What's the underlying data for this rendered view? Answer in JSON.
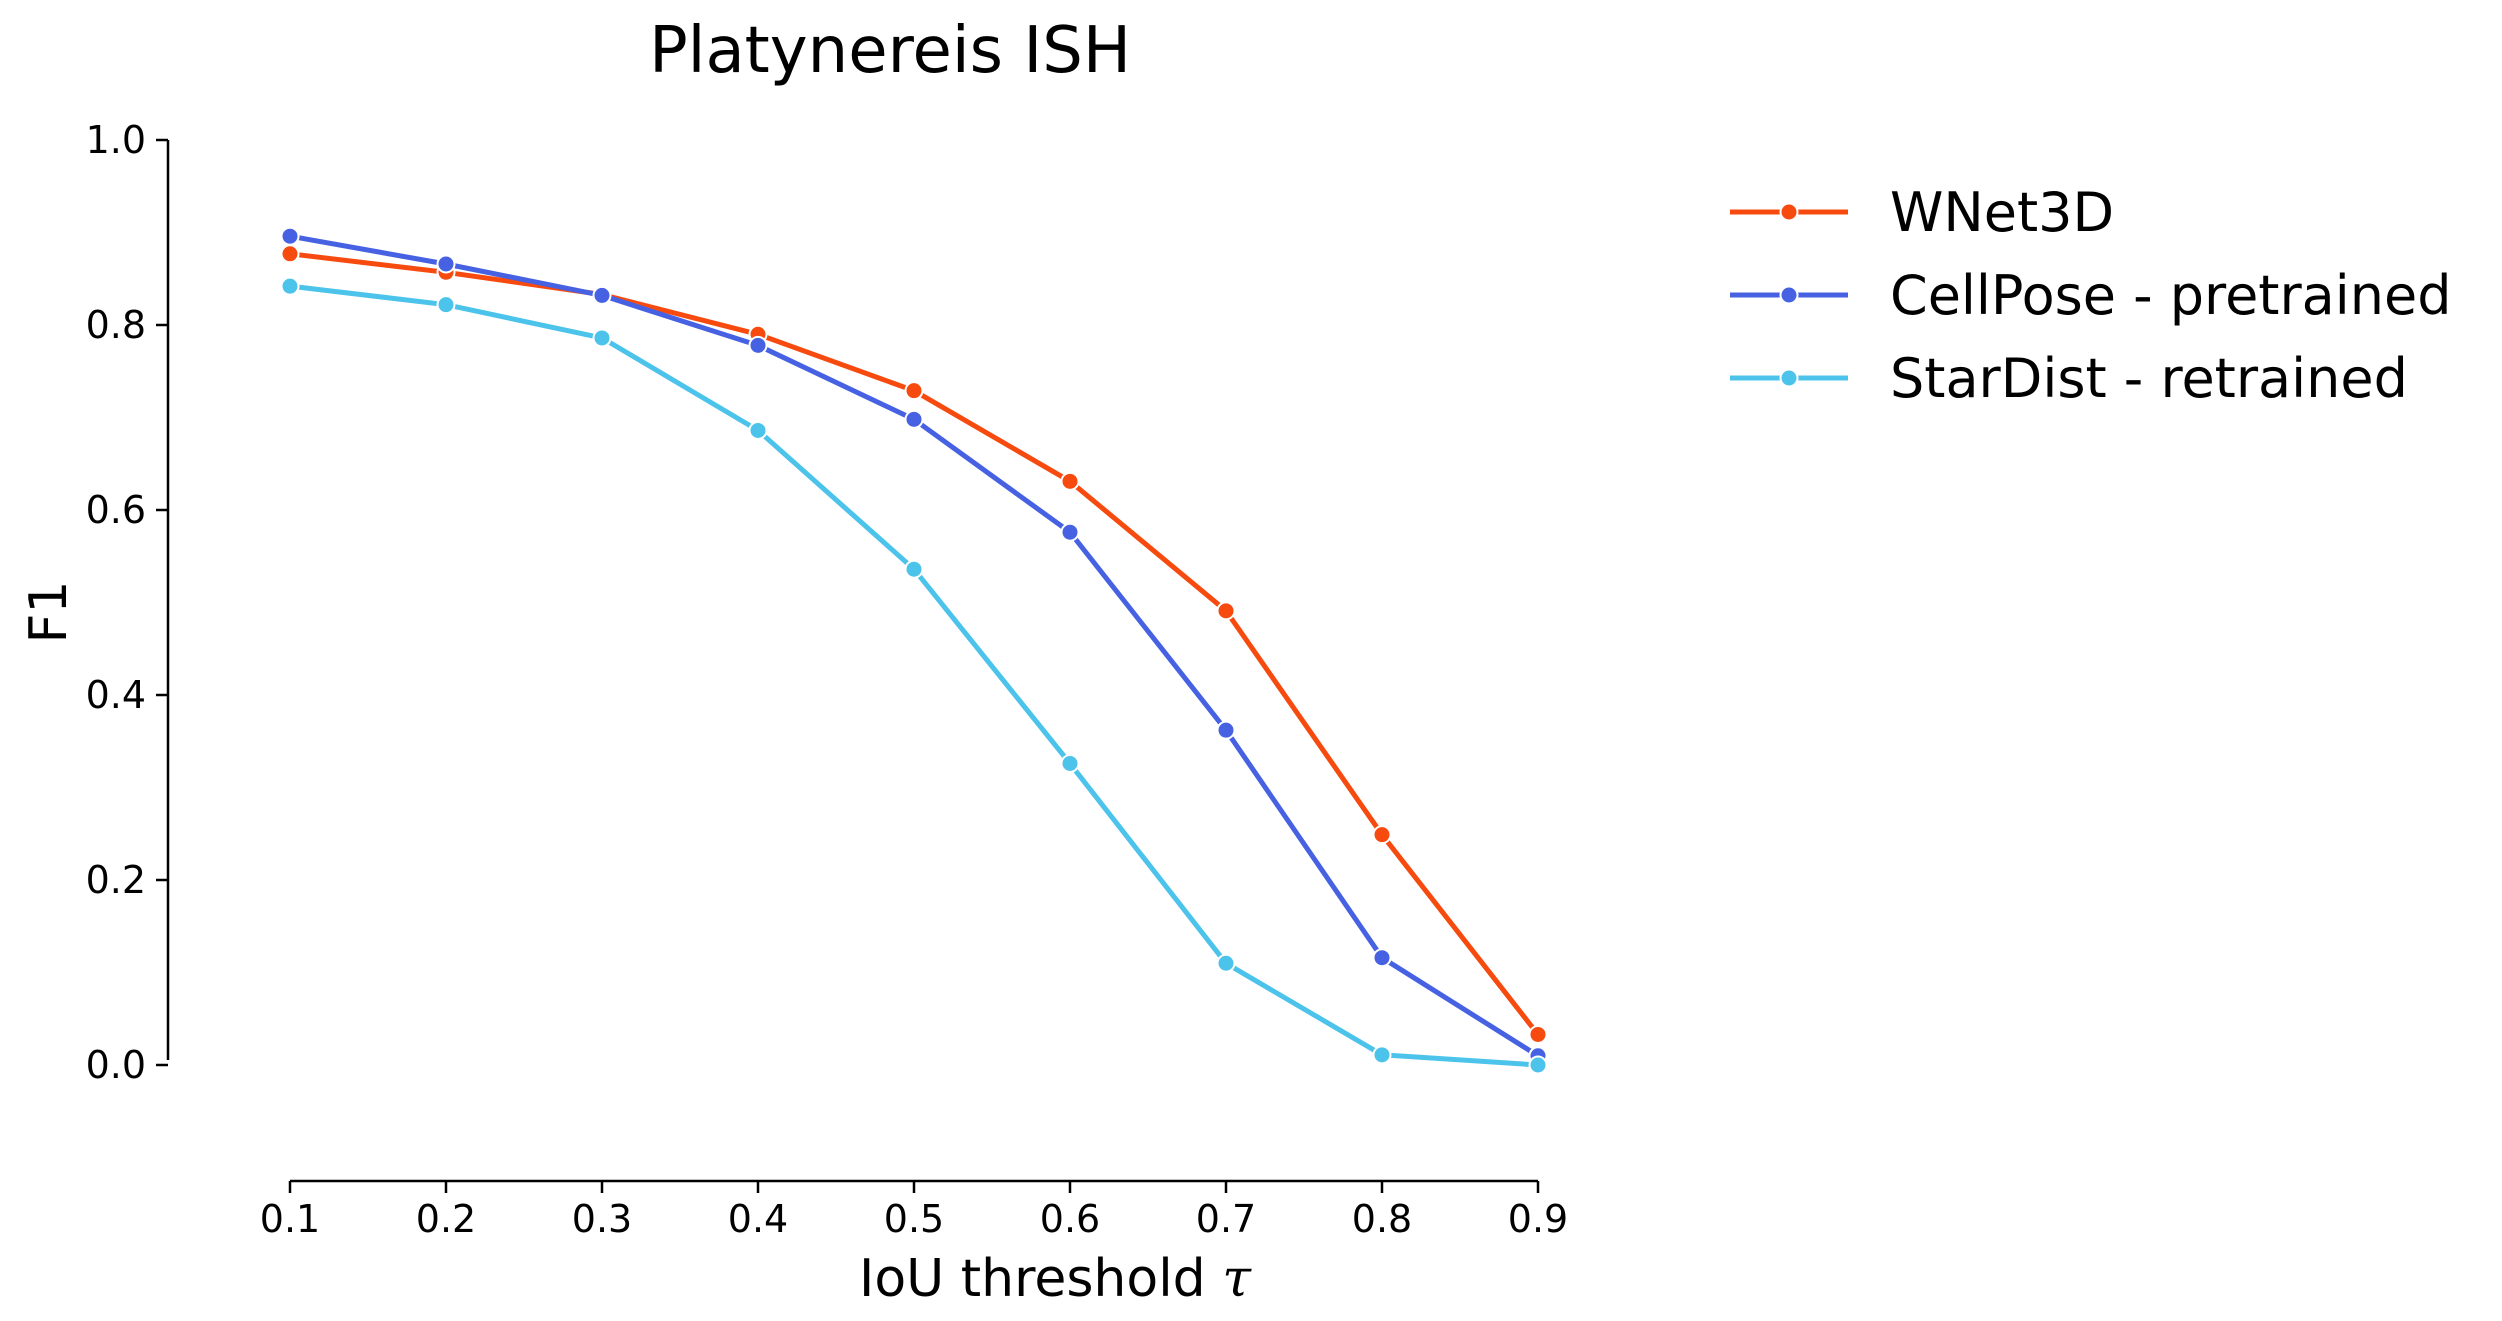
{
  "chart_data": {
    "type": "line",
    "title": "Platynereis ISH",
    "xlabel": "IoU threshold",
    "xlabel_symbol": "τ",
    "ylabel": "F1",
    "x": [
      0.1,
      0.2,
      0.3,
      0.4,
      0.5,
      0.6,
      0.7,
      0.8,
      0.9
    ],
    "x_tick_labels": [
      "0.1",
      "0.2",
      "0.3",
      "0.4",
      "0.5",
      "0.6",
      "0.7",
      "0.8",
      "0.9"
    ],
    "y_ticks": [
      0.0,
      0.2,
      0.4,
      0.6,
      0.8,
      1.0
    ],
    "y_tick_labels": [
      "0.0",
      "0.2",
      "0.4",
      "0.6",
      "0.8",
      "1.0"
    ],
    "xlim": [
      0.1,
      0.9
    ],
    "ylim": [
      -0.12,
      1.0
    ],
    "grid": false,
    "legend_position": "outside-right-top",
    "series": [
      {
        "name": "WNet3D",
        "color": "#F74A0F",
        "values": [
          0.877,
          0.857,
          0.833,
          0.79,
          0.729,
          0.631,
          0.491,
          0.249,
          0.033
        ]
      },
      {
        "name": "CellPose - pretrained",
        "color": "#4662E3",
        "values": [
          0.896,
          0.866,
          0.832,
          0.778,
          0.698,
          0.576,
          0.362,
          0.116,
          0.01
        ]
      },
      {
        "name": "StarDist - retrained",
        "color": "#4CC3EA",
        "values": [
          0.842,
          0.822,
          0.786,
          0.686,
          0.536,
          0.326,
          0.11,
          0.011,
          0.0
        ]
      }
    ]
  }
}
